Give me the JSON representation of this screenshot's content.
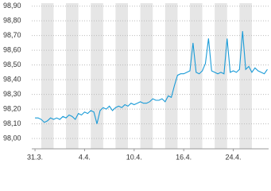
{
  "chart_data": {
    "type": "line",
    "x": [
      0,
      0.25,
      0.5,
      0.75,
      1,
      1.25,
      1.5,
      1.75,
      2,
      2.25,
      2.5,
      2.75,
      3,
      3.25,
      3.5,
      3.75,
      4,
      4.25,
      4.5,
      4.75,
      5,
      5.25,
      5.5,
      5.75,
      6,
      6.25,
      6.5,
      6.75,
      7,
      7.25,
      7.5,
      7.75,
      8,
      8.25,
      8.5,
      8.75,
      9,
      9.25,
      9.5,
      9.75,
      10,
      10.25,
      10.5,
      10.75,
      11,
      11.25,
      11.5,
      11.75,
      12,
      12.25,
      12.5,
      12.75,
      13,
      13.25,
      13.5,
      13.75,
      14,
      14.25,
      14.5,
      14.75,
      15,
      15.25,
      15.5,
      15.75,
      16,
      16.25,
      16.5,
      16.75,
      17,
      17.25,
      17.5,
      17.75,
      18,
      18.25,
      18.5,
      18.75
    ],
    "series": [
      {
        "color": "#1a9bd7",
        "values": [
          98.14,
          98.14,
          98.13,
          98.11,
          98.12,
          98.14,
          98.13,
          98.14,
          98.13,
          98.15,
          98.14,
          98.16,
          98.15,
          98.13,
          98.17,
          98.16,
          98.18,
          98.17,
          98.19,
          98.18,
          98.1,
          98.19,
          98.21,
          98.2,
          98.22,
          98.19,
          98.21,
          98.22,
          98.21,
          98.23,
          98.22,
          98.24,
          98.23,
          98.24,
          98.25,
          98.24,
          98.24,
          98.25,
          98.27,
          98.26,
          98.26,
          98.27,
          98.25,
          98.29,
          98.28,
          98.36,
          98.43,
          98.44,
          98.44,
          98.45,
          98.46,
          98.65,
          98.45,
          98.44,
          98.46,
          98.51,
          98.68,
          98.46,
          98.45,
          98.44,
          98.45,
          98.44,
          98.68,
          98.45,
          98.46,
          98.45,
          98.47,
          98.73,
          98.47,
          98.49,
          98.45,
          98.48,
          98.46,
          98.45,
          98.44,
          98.47
        ]
      }
    ],
    "xlim": [
      -0.26,
      18.85
    ],
    "xticks": [
      {
        "value": 0,
        "label": "31.3."
      },
      {
        "value": 4,
        "label": "4.4."
      },
      {
        "value": 8,
        "label": "10.4."
      },
      {
        "value": 12,
        "label": "16.4."
      },
      {
        "value": 16,
        "label": "24.4."
      }
    ],
    "ylim": [
      97.93,
      98.92
    ],
    "yticks": [
      {
        "value": 98.0,
        "label": "98,00"
      },
      {
        "value": 98.1,
        "label": "98,10"
      },
      {
        "value": 98.2,
        "label": "98,20"
      },
      {
        "value": 98.3,
        "label": "98,30"
      },
      {
        "value": 98.4,
        "label": "98,40"
      },
      {
        "value": 98.5,
        "label": "98,50"
      },
      {
        "value": 98.6,
        "label": "98,60"
      },
      {
        "value": 98.7,
        "label": "98,70"
      },
      {
        "value": 98.8,
        "label": "98,80"
      },
      {
        "value": 98.9,
        "label": "98,90"
      }
    ],
    "grid": true
  }
}
